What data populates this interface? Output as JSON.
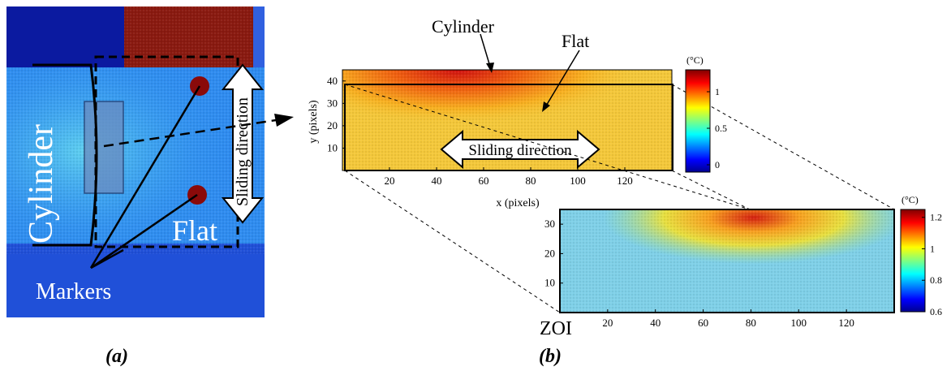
{
  "panel_a": {
    "caption": "(a)",
    "label_cylinder": "Cylinder",
    "label_flat": "Flat",
    "label_markers": "Markers",
    "label_sliding": "Sliding direction"
  },
  "panel_b": {
    "caption": "(b)",
    "callout_cylinder": "Cylinder",
    "callout_flat": "Flat",
    "label_sliding": "Sliding direction",
    "label_zoi": "ZOI",
    "top_map": {
      "x_label": "x (pixels)",
      "y_label": "y (pixels)",
      "x_ticks": [
        "20",
        "40",
        "60",
        "80",
        "100",
        "120"
      ],
      "y_ticks": [
        "10",
        "20",
        "30",
        "40"
      ],
      "colorbar_unit": "(°C)",
      "colorbar_ticks": [
        "0",
        "0.5",
        "1"
      ]
    },
    "zoi_map": {
      "x_ticks": [
        "20",
        "40",
        "60",
        "80",
        "100",
        "120"
      ],
      "y_ticks": [
        "10",
        "20",
        "30"
      ],
      "colorbar_unit": "(°C)",
      "colorbar_ticks": [
        "0.6",
        "0.8",
        "1",
        "1.2"
      ]
    }
  },
  "chart_data": [
    {
      "type": "heatmap",
      "title": "",
      "xlabel": "x (pixels)",
      "ylabel": "y (pixels)",
      "xlim": [
        0,
        140
      ],
      "ylim": [
        0,
        45
      ],
      "color_range": [
        -0.1,
        1.3
      ],
      "colorbar_ticks": [
        0,
        0.5,
        1
      ],
      "hotspot_center": [
        55,
        40
      ],
      "hotspot_max": 1.25
    },
    {
      "type": "heatmap",
      "title": "",
      "xlim": [
        0,
        140
      ],
      "ylim": [
        0,
        35
      ],
      "color_range": [
        0.6,
        1.25
      ],
      "colorbar_ticks": [
        0.6,
        0.8,
        1,
        1.2
      ],
      "hotspot_center": [
        85,
        33
      ],
      "hotspot_max": 1.22
    }
  ],
  "colors": {
    "jet": [
      "#00008f",
      "#0000ff",
      "#0080ff",
      "#00ffff",
      "#80ff80",
      "#ffff00",
      "#ff8000",
      "#ff0000",
      "#800000"
    ]
  }
}
